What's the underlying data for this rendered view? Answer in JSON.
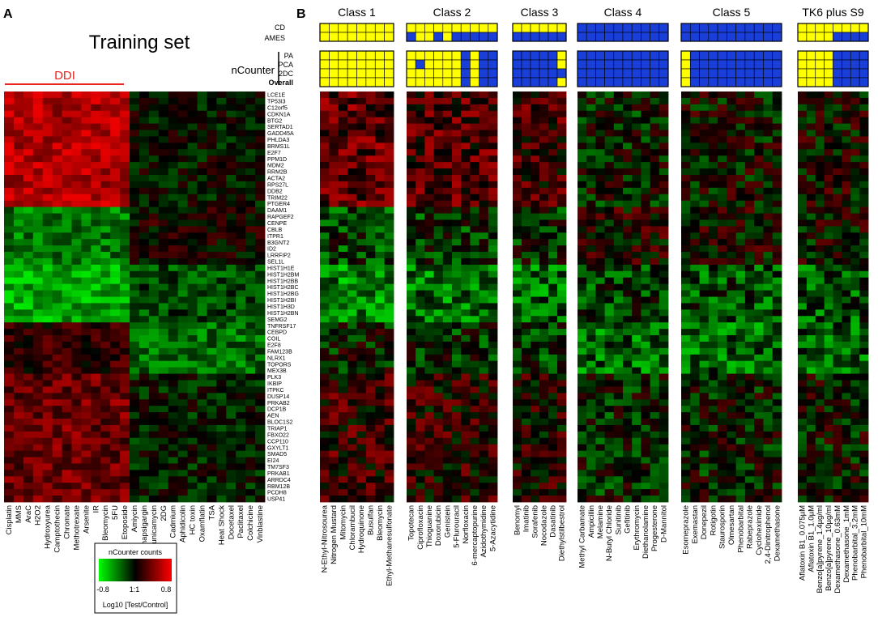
{
  "panel_a": {
    "letter": "A",
    "title": "Training set",
    "ddi_label": "DDI",
    "ddi_color": "#e8251f",
    "compounds": [
      "Cisplatin",
      "MMS",
      "AraC",
      "H2O2",
      "Hydroxyurea",
      "Camptothecin",
      "Chromate",
      "Methotrexate",
      "Arsenite",
      "IR",
      "Bleomycin",
      "5FU",
      "Etoposide",
      "Amiycin",
      "Thapsigargin",
      "Tunicamycin",
      "2DG",
      "Cadmium",
      "Aphidicolin",
      "HC toxin",
      "Oxamflatin",
      "TSA",
      "Heat Shock",
      "Docetaxel",
      "Paclitaxel",
      "Colchicine",
      "Vinblastine"
    ],
    "genes": [
      "LCE1E",
      "TP53I3",
      "C12orf5",
      "CDKN1A",
      "BTG2",
      "SERTAD1",
      "GADD45A",
      "PHLDA3",
      "BRMS1L",
      "E2F7",
      "PPM1D",
      "MDM2",
      "RRM2B",
      "ACTA2",
      "RPS27L",
      "DDB2",
      "TRIM22",
      "PTGER4",
      "DAAM1",
      "RAPGEF2",
      "CENPE",
      "CBLB",
      "ITPR1",
      "B3GNT2",
      "ID2",
      "LRRFIP2",
      "SEL1L",
      "HIST1H1E",
      "HIST1H2BM",
      "HIST1H2BB",
      "HIST1H2BC",
      "HIST1H2BG",
      "HIST1H2BI",
      "HIST1H3D",
      "HIST1H2BN",
      "SEMG2",
      "TNFRSF17",
      "CEBPD",
      "COIL",
      "E2F8",
      "FAM123B",
      "NLRX1",
      "TOPORS",
      "MEX3B",
      "PLK3",
      "IKBIP",
      "ITPKC",
      "DUSP14",
      "PRKAB2",
      "DCP1B",
      "AEN",
      "BLOC1S2",
      "TRIAP1",
      "FBXO22",
      "CCP110",
      "GXYLT1",
      "SMAD5",
      "EI24",
      "TM7SF3",
      "PRKAB1",
      "ARRDC4",
      "RBM12B",
      "PCDH8",
      "USP41"
    ]
  },
  "legend": {
    "title": "nCounter counts",
    "min_label": "-0.8",
    "mid_label": "1:1",
    "max_label": "0.8",
    "axis_label": "Log10 [Test/Control]",
    "low_color": "#00ff00",
    "mid_color": "#000000",
    "high_color": "#ff0000"
  },
  "panel_b": {
    "letter": "B",
    "row_labels_top": [
      "CD",
      "AMES"
    ],
    "ncounter_label": "nCounter",
    "row_labels_bottom": [
      "PA",
      "PCA",
      "2DC",
      "Overall"
    ],
    "positive_color": "#ffff00",
    "negative_color": "#1a3fd9",
    "classes": [
      {
        "title": "Class 1",
        "compounds": [
          "N-Ethyl-Nitrosourea",
          "Nitrogen Mustard",
          "Mitomycin",
          "Chlorambucil",
          "Hydroquinone",
          "Busulfan",
          "Bleomycin",
          "Ethyl-Methanesulfonate"
        ]
      },
      {
        "title": "Class 2",
        "compounds": [
          "Topotecan",
          "Ciprofloxacin",
          "Thioguanine",
          "Doxorubicin",
          "Genistein",
          "5-Flurouracil",
          "Norfloxacin",
          "6-mercaptopurine",
          "Azidothymidine",
          "5-Azacytidine"
        ]
      },
      {
        "title": "Class 3",
        "compounds": [
          "Benomyl",
          "Imatinib",
          "Sorafenib",
          "Nocodazole",
          "Dasatinib",
          "Diethylstilbestrol"
        ]
      },
      {
        "title": "Class 4",
        "compounds": [
          "Methyl Carbamate",
          "Ampicillin",
          "Melamine",
          "N-Butyl Chloride",
          "Sunitinib",
          "Gefitinib",
          "Erythromycin",
          "Diethanolamine",
          "Progesterone",
          "D-Mannitol"
        ]
      },
      {
        "title": "Class 5",
        "compounds": [
          "Esomeprazole",
          "Exemastan",
          "Donepezil",
          "Rotigotin",
          "Staurosporin",
          "Olmesartan",
          "Phenobarbital",
          "Rabeprazole",
          "Cycloheximide",
          "2,4-Dinitrophenol",
          "Dexamethasone"
        ]
      },
      {
        "title": "TK6 plus S9",
        "compounds": [
          "Aflatoxin B1_0.075µM",
          "Aflatoxin B1_1.0µM",
          "Benzo[a]pyrene_1.4µg/ml",
          "Benzo[a]pyrene_10µg/ml",
          "Dexamethasone_0.63mM",
          "Dexamethasone_1mM",
          "Phenobarbital_3.2mM",
          "Phenobarbital_10mM"
        ]
      }
    ]
  }
}
